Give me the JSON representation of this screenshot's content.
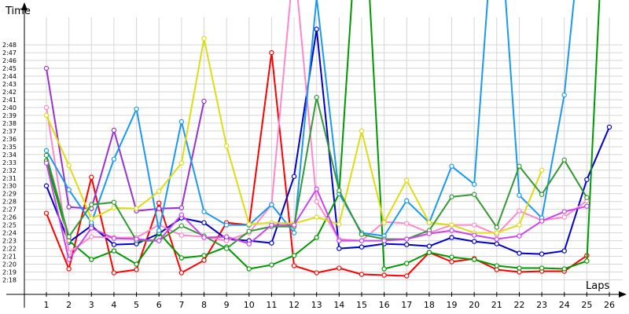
{
  "chart_data": {
    "type": "line",
    "title": "",
    "ylabel": "Time",
    "xlabel": "Laps",
    "x": [
      1,
      2,
      3,
      4,
      5,
      6,
      7,
      8,
      9,
      10,
      11,
      12,
      13,
      14,
      15,
      16,
      17,
      18,
      19,
      20,
      21,
      22,
      23,
      24,
      25,
      26
    ],
    "y_ticks": [
      "2:18",
      "2:19",
      "2:20",
      "2:21",
      "2:22",
      "2:23",
      "2:24",
      "2:25",
      "2:26",
      "2:27",
      "2:28",
      "2:29",
      "2:30",
      "2:31",
      "2:32",
      "2:33",
      "2:34",
      "2:35",
      "2:36",
      "2:37",
      "2:38",
      "2:39",
      "2:40",
      "2:41",
      "2:42",
      "2:43",
      "2:44",
      "2:45",
      "2:46",
      "2:47",
      "2:48"
    ],
    "ylim_seconds": [
      137,
      152
    ],
    "grid": true,
    "legend": "none",
    "series": [
      {
        "color": "#ff0000",
        "values": [
          146.5,
          139.4,
          151.1,
          138.9,
          139.3,
          147.8,
          138.9,
          140.5,
          145.3,
          145.0,
          167.0,
          139.8,
          138.9,
          139.5,
          138.7,
          138.6,
          138.5,
          141.5,
          140.3,
          140.7,
          139.3,
          139.0,
          139.1,
          139.1,
          141.1,
          null
        ]
      },
      {
        "color": "#0000cc",
        "values": [
          150.0,
          142.8,
          144.9,
          142.5,
          142.6,
          143.9,
          145.9,
          145.3,
          143.2,
          143.0,
          142.7,
          151.2,
          170.0,
          142.0,
          142.2,
          142.6,
          142.5,
          142.3,
          143.4,
          142.9,
          142.6,
          141.4,
          141.3,
          141.7,
          150.8,
          157.5
        ]
      },
      {
        "color": "#009900",
        "values": [
          153.2,
          143.0,
          140.6,
          141.7,
          140.0,
          144.0,
          140.8,
          141.1,
          142.2,
          139.4,
          139.9,
          141.1,
          143.4,
          149.0,
          193.0,
          139.4,
          140.1,
          141.5,
          140.9,
          140.6,
          139.8,
          139.5,
          139.5,
          139.4,
          140.4,
          200.0
        ]
      },
      {
        "color": "#ff88cc",
        "values": [
          160.0,
          141.5,
          143.5,
          143.4,
          143.4,
          145.0,
          143.7,
          143.5,
          143.0,
          144.0,
          147.6,
          179.0,
          148.0,
          143.2,
          143.0,
          145.4,
          145.2,
          144.0,
          145.0,
          145.0,
          143.8,
          146.8,
          145.6,
          146.0,
          148.1,
          null
        ]
      },
      {
        "color": "#9933cc",
        "values": [
          165.0,
          147.3,
          147.1,
          157.1,
          146.8,
          147.1,
          147.2,
          160.8,
          null,
          null,
          null,
          null,
          null,
          null,
          null,
          null,
          null,
          null,
          null,
          null,
          null,
          null,
          null,
          null,
          null,
          null
        ]
      },
      {
        "color": "#1a99ee",
        "values": [
          154.5,
          149.5,
          145.3,
          153.4,
          159.8,
          144.3,
          158.2,
          146.7,
          145.0,
          145.0,
          147.6,
          144.0,
          174.0,
          149.0,
          144.0,
          143.6,
          148.1,
          145.3,
          152.5,
          150.2,
          190.0,
          148.8,
          145.9,
          161.6,
          190.0,
          null
        ]
      },
      {
        "color": "#dddd11",
        "values": [
          159.0,
          152.6,
          145.8,
          147.2,
          147.1,
          149.3,
          152.9,
          168.8,
          155.1,
          145.1,
          145.3,
          145.2,
          146.0,
          145.1,
          157.0,
          145.3,
          150.7,
          145.3,
          145.0,
          144.0,
          144.0,
          145.0,
          152.0,
          null,
          null,
          null
        ]
      },
      {
        "color": "#339933",
        "values": [
          153.9,
          143.5,
          147.6,
          147.9,
          143.0,
          143.0,
          144.9,
          143.6,
          142.0,
          144.2,
          144.8,
          144.8,
          161.3,
          149.4,
          143.8,
          143.2,
          143.2,
          144.3,
          148.6,
          148.9,
          144.7,
          152.5,
          148.9,
          153.3,
          148.5,
          null
        ]
      },
      {
        "color": "#cc44ee",
        "values": [
          152.9,
          140.6,
          144.6,
          143.3,
          143.2,
          143.0,
          146.3,
          143.4,
          143.5,
          142.6,
          145.0,
          145.0,
          149.6,
          143.0,
          143.0,
          143.0,
          143.2,
          143.9,
          144.3,
          143.7,
          143.2,
          143.6,
          145.5,
          146.7,
          147.4,
          null
        ]
      }
    ]
  }
}
